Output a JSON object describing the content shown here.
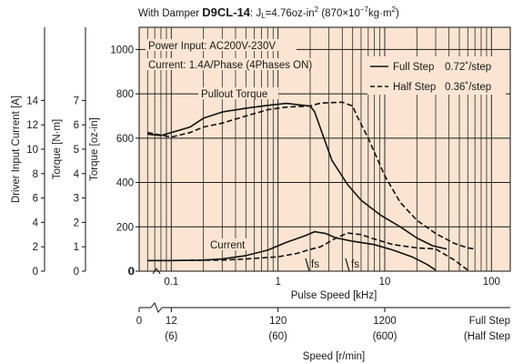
{
  "title": {
    "prefix": "With Damper ",
    "model": "D9CL-14",
    "sep": ": ",
    "inertia_sym": "J",
    "inertia_sub": "L",
    "inertia_val": "=4.76oz-in",
    "inertia_exp": "2",
    "si_open": " (870×10",
    "si_exp": "−7",
    "si_close": "kg·m",
    "si_exp2": "2",
    "si_end": ")"
  },
  "axes": {
    "current_label": "Driver Input Current [A]",
    "torque_nm_label": "Torque [N·m]",
    "torque_ozin_label": "Torque [oz-in]",
    "pulse_label": "Pulse Speed [kHz]",
    "speed_label": "Speed [r/min]",
    "current_ticks": [
      "0",
      "2",
      "4",
      "6",
      "8",
      "10",
      "12",
      "14"
    ],
    "torque_nm_ticks": [
      "0",
      "1",
      "2",
      "3",
      "4",
      "5",
      "6",
      "7"
    ],
    "torque_ozin_ticks": [
      "0",
      "200",
      "400",
      "600",
      "800",
      "1000"
    ],
    "pulse_ticks": [
      "0.1",
      "1",
      "10",
      "100"
    ],
    "pulse_zero": "0",
    "speed_zero": "0",
    "speed_ticks": [
      {
        "full": "12",
        "half": "(6)"
      },
      {
        "full": "120",
        "half": "(60)"
      },
      {
        "full": "1200",
        "half": "(600)"
      }
    ],
    "speed_end_full": "Full Step",
    "speed_end_half": "(Half Step"
  },
  "annotations": {
    "power_input": "Power Input: AC200V-230V",
    "current_spec": "Current: 1.4A/Phase (4Phases ON)",
    "pullout": "Pullout Torque",
    "current": "Current",
    "fs1": "fs",
    "fs2": "fs"
  },
  "legend": {
    "full_name": "Full Step",
    "full_angle": "0.72˚/step",
    "half_name": "Half Step",
    "half_angle": "0.36˚/step"
  },
  "colors": {
    "plot_bg": "#fbe5d2",
    "major_grid": "#1a1a1a",
    "minor_grid": "#2a2a2a",
    "line": "#111111"
  },
  "chart_data": {
    "type": "line",
    "xscale": "log",
    "xlabel": "Pulse Speed [kHz]",
    "ylabel": "Torque [oz-in]",
    "xlim": [
      0.05,
      150
    ],
    "ylim": [
      0,
      1100
    ],
    "series": [
      {
        "name": "Full Step",
        "kind": "pullout_torque",
        "style": "solid",
        "points": [
          [
            0.06,
            618
          ],
          [
            0.08,
            612
          ],
          [
            0.1,
            625
          ],
          [
            0.15,
            650
          ],
          [
            0.2,
            690
          ],
          [
            0.3,
            718
          ],
          [
            0.5,
            735
          ],
          [
            0.8,
            748
          ],
          [
            1.2,
            757
          ],
          [
            1.6,
            750
          ],
          [
            2.0,
            745
          ],
          [
            2.2,
            720
          ],
          [
            2.6,
            620
          ],
          [
            3.2,
            500
          ],
          [
            4.5,
            390
          ],
          [
            6,
            320
          ],
          [
            9,
            255
          ],
          [
            14,
            200
          ],
          [
            20,
            150
          ],
          [
            28,
            115
          ],
          [
            38,
            100
          ]
        ]
      },
      {
        "name": "Half Step",
        "kind": "pullout_torque",
        "style": "dashed",
        "points": [
          [
            0.06,
            625
          ],
          [
            0.1,
            605
          ],
          [
            0.15,
            625
          ],
          [
            0.2,
            650
          ],
          [
            0.3,
            668
          ],
          [
            0.5,
            700
          ],
          [
            0.8,
            728
          ],
          [
            1.2,
            740
          ],
          [
            2.0,
            745
          ],
          [
            2.5,
            758
          ],
          [
            4.0,
            762
          ],
          [
            5.0,
            745
          ],
          [
            5.5,
            700
          ],
          [
            7,
            600
          ],
          [
            10,
            430
          ],
          [
            14,
            310
          ],
          [
            20,
            230
          ],
          [
            30,
            170
          ],
          [
            45,
            125
          ],
          [
            60,
            105
          ],
          [
            70,
            100
          ]
        ]
      },
      {
        "name": "Full Step",
        "kind": "current",
        "style": "solid",
        "points": [
          [
            0.06,
            48
          ],
          [
            0.1,
            48
          ],
          [
            0.2,
            50
          ],
          [
            0.3,
            55
          ],
          [
            0.5,
            70
          ],
          [
            0.8,
            95
          ],
          [
            1.2,
            130
          ],
          [
            1.8,
            160
          ],
          [
            2.2,
            178
          ],
          [
            2.8,
            170
          ],
          [
            3.5,
            150
          ],
          [
            5,
            135
          ],
          [
            8,
            120
          ],
          [
            12,
            95
          ],
          [
            18,
            65
          ],
          [
            25,
            30
          ],
          [
            30,
            5
          ]
        ]
      },
      {
        "name": "Half Step",
        "kind": "current",
        "style": "dashed",
        "points": [
          [
            0.06,
            48
          ],
          [
            0.1,
            48
          ],
          [
            0.3,
            50
          ],
          [
            0.5,
            55
          ],
          [
            1.0,
            65
          ],
          [
            1.5,
            80
          ],
          [
            2.0,
            98
          ],
          [
            2.5,
            110
          ],
          [
            3.5,
            150
          ],
          [
            4.5,
            172
          ],
          [
            6,
            165
          ],
          [
            8,
            145
          ],
          [
            12,
            120
          ],
          [
            20,
            105
          ],
          [
            30,
            100
          ],
          [
            45,
            50
          ],
          [
            60,
            5
          ]
        ]
      }
    ]
  }
}
